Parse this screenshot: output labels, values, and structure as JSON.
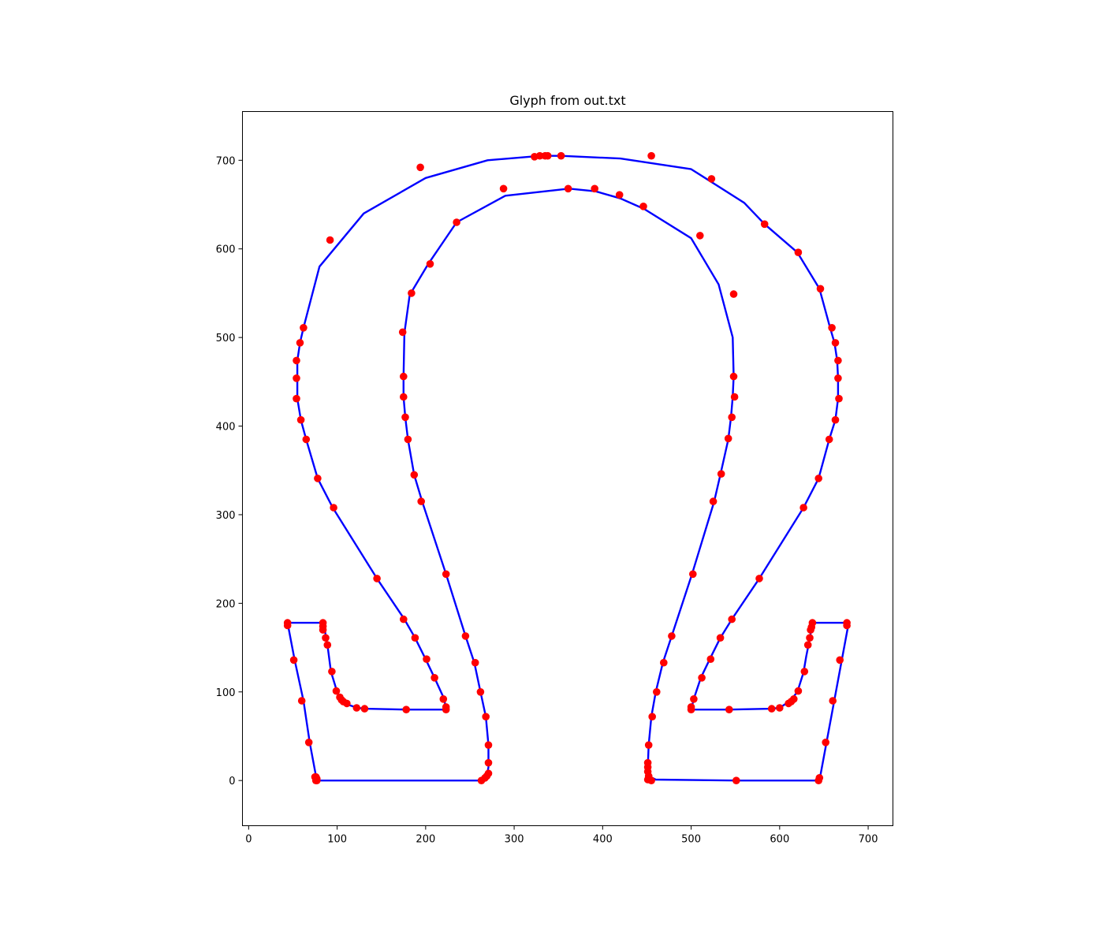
{
  "chart_data": {
    "type": "scatter",
    "title": "Glyph from out.txt",
    "xlabel": "",
    "ylabel": "",
    "xlim": [
      -7,
      728
    ],
    "ylim": [
      -51,
      755
    ],
    "xticks": [
      0,
      100,
      200,
      300,
      400,
      500,
      600,
      700
    ],
    "yticks": [
      0,
      100,
      200,
      300,
      400,
      500,
      600,
      700
    ],
    "grid": false,
    "colors": {
      "outline": "#0000ff",
      "points": "#ff0000",
      "axes": "#000000"
    },
    "series": [
      {
        "kind": "line",
        "values": [
          [
            [
              77,
              0
            ],
            [
              263,
              0
            ],
            [
              269,
              5
            ],
            [
              271,
              15
            ],
            [
              271,
              40
            ],
            [
              268,
              72
            ],
            [
              262,
              100
            ],
            [
              255,
              133
            ],
            [
              245,
              163
            ],
            [
              223,
              233
            ],
            [
              196,
              315
            ],
            [
              187,
              345
            ],
            [
              180,
              385
            ],
            [
              177,
              410
            ],
            [
              175,
              433
            ],
            [
              175,
              456
            ],
            [
              176,
              505
            ],
            [
              182,
              548
            ],
            [
              203,
              583
            ],
            [
              235,
              630
            ],
            [
              290,
              660
            ],
            [
              362,
              668
            ],
            [
              392,
              665
            ],
            [
              420,
              657
            ],
            [
              447,
              645
            ],
            [
              500,
              612
            ],
            [
              531,
              560
            ],
            [
              547,
              500
            ],
            [
              548,
              456
            ],
            [
              547,
              433
            ],
            [
              545,
              410
            ],
            [
              542,
              385
            ],
            [
              533,
              345
            ],
            [
              526,
              315
            ],
            [
              501,
              233
            ],
            [
              478,
              163
            ],
            [
              468,
              133
            ],
            [
              460,
              100
            ],
            [
              455,
              72
            ],
            [
              452,
              40
            ],
            [
              451,
              15
            ],
            [
              452,
              5
            ],
            [
              460,
              1
            ],
            [
              552,
              0
            ],
            [
              645,
              0
            ],
            [
              678,
              178
            ],
            [
              637,
              178
            ],
            [
              634,
              160
            ],
            [
              630,
              140
            ],
            [
              627,
              122
            ],
            [
              620,
              100
            ],
            [
              612,
              90
            ],
            [
              600,
              82
            ],
            [
              590,
              81
            ],
            [
              543,
              80
            ],
            [
              500,
              80
            ],
            [
              503,
              92
            ],
            [
              511,
              116
            ],
            [
              521,
              137
            ],
            [
              533,
              161
            ],
            [
              546,
              182
            ],
            [
              577,
              228
            ],
            [
              627,
              308
            ],
            [
              644,
              341
            ],
            [
              656,
              385
            ],
            [
              663,
              407
            ],
            [
              666,
              431
            ],
            [
              666,
              454
            ],
            [
              665,
              474
            ],
            [
              662,
              494
            ],
            [
              657,
              511
            ],
            [
              645,
              555
            ],
            [
              620,
              596
            ],
            [
              583,
              628
            ],
            [
              560,
              652
            ],
            [
              500,
              690
            ],
            [
              420,
              702
            ],
            [
              353,
              705
            ],
            [
              330,
              705
            ],
            [
              270,
              700
            ],
            [
              200,
              680
            ],
            [
              130,
              640
            ],
            [
              80,
              580
            ],
            [
              62,
              511
            ],
            [
              58,
              494
            ],
            [
              55,
              474
            ],
            [
              55,
              454
            ],
            [
              55,
              431
            ],
            [
              59,
              407
            ],
            [
              65,
              385
            ],
            [
              78,
              341
            ],
            [
              95,
              308
            ],
            [
              145,
              228
            ],
            [
              176,
              182
            ],
            [
              188,
              161
            ],
            [
              200,
              137
            ],
            [
              210,
              116
            ],
            [
              221,
              92
            ],
            [
              223,
              80
            ],
            [
              180,
              80
            ],
            [
              132,
              81
            ],
            [
              123,
              82
            ],
            [
              111,
              86
            ],
            [
              104,
              91
            ],
            [
              100,
              100
            ],
            [
              93,
              123
            ],
            [
              89,
              153
            ],
            [
              86,
              170
            ],
            [
              84,
              178
            ],
            [
              44,
              178
            ],
            [
              52,
              136
            ],
            [
              62,
              90
            ],
            [
              69,
              43
            ],
            [
              77,
              0
            ]
          ]
        ]
      },
      {
        "kind": "points",
        "values": [
          [
            77,
            0
          ],
          [
            76,
            4
          ],
          [
            77,
            2
          ],
          [
            263,
            0
          ],
          [
            267,
            3
          ],
          [
            269,
            5
          ],
          [
            271,
            8
          ],
          [
            271,
            20
          ],
          [
            271,
            40
          ],
          [
            268,
            72
          ],
          [
            262,
            100
          ],
          [
            256,
            133
          ],
          [
            245,
            163
          ],
          [
            223,
            233
          ],
          [
            195,
            315
          ],
          [
            187,
            345
          ],
          [
            180,
            385
          ],
          [
            177,
            410
          ],
          [
            175,
            433
          ],
          [
            175,
            456
          ],
          [
            174,
            506
          ],
          [
            184,
            550
          ],
          [
            205,
            583
          ],
          [
            235,
            630
          ],
          [
            288,
            668
          ],
          [
            361,
            668
          ],
          [
            391,
            668
          ],
          [
            419,
            661
          ],
          [
            446,
            648
          ],
          [
            510,
            615
          ],
          [
            548,
            549
          ],
          [
            548,
            456
          ],
          [
            549,
            433
          ],
          [
            546,
            410
          ],
          [
            542,
            386
          ],
          [
            534,
            346
          ],
          [
            525,
            315
          ],
          [
            502,
            233
          ],
          [
            478,
            163
          ],
          [
            469,
            133
          ],
          [
            461,
            100
          ],
          [
            456,
            72
          ],
          [
            452,
            40
          ],
          [
            451,
            20
          ],
          [
            451,
            15
          ],
          [
            451,
            10
          ],
          [
            452,
            5
          ],
          [
            451,
            1
          ],
          [
            455,
            0
          ],
          [
            551,
            0
          ],
          [
            644,
            0
          ],
          [
            645,
            3
          ],
          [
            652,
            43
          ],
          [
            660,
            90
          ],
          [
            668,
            136
          ],
          [
            676,
            175
          ],
          [
            676,
            178
          ],
          [
            637,
            178
          ],
          [
            636,
            173
          ],
          [
            635,
            170
          ],
          [
            634,
            161
          ],
          [
            632,
            153
          ],
          [
            628,
            123
          ],
          [
            621,
            101
          ],
          [
            616,
            92
          ],
          [
            613,
            89
          ],
          [
            610,
            87
          ],
          [
            600,
            82
          ],
          [
            591,
            81
          ],
          [
            543,
            80
          ],
          [
            500,
            80
          ],
          [
            500,
            83
          ],
          [
            503,
            92
          ],
          [
            512,
            116
          ],
          [
            522,
            137
          ],
          [
            533,
            161
          ],
          [
            546,
            182
          ],
          [
            577,
            228
          ],
          [
            627,
            308
          ],
          [
            644,
            341
          ],
          [
            656,
            385
          ],
          [
            663,
            407
          ],
          [
            667,
            431
          ],
          [
            666,
            454
          ],
          [
            666,
            474
          ],
          [
            663,
            494
          ],
          [
            659,
            511
          ],
          [
            646,
            555
          ],
          [
            621,
            596
          ],
          [
            583,
            628
          ],
          [
            523,
            679
          ],
          [
            455,
            705
          ],
          [
            353,
            705
          ],
          [
            338,
            705
          ],
          [
            335,
            705
          ],
          [
            329,
            705
          ],
          [
            323,
            704
          ],
          [
            194,
            692
          ],
          [
            92,
            610
          ],
          [
            62,
            511
          ],
          [
            58,
            494
          ],
          [
            54,
            474
          ],
          [
            54,
            454
          ],
          [
            54,
            431
          ],
          [
            59,
            407
          ],
          [
            65,
            385
          ],
          [
            78,
            341
          ],
          [
            96,
            308
          ],
          [
            145,
            228
          ],
          [
            175,
            182
          ],
          [
            188,
            161
          ],
          [
            201,
            137
          ],
          [
            210,
            116
          ],
          [
            220,
            92
          ],
          [
            223,
            83
          ],
          [
            223,
            80
          ],
          [
            178,
            80
          ],
          [
            131,
            81
          ],
          [
            122,
            82
          ],
          [
            111,
            87
          ],
          [
            107,
            89
          ],
          [
            105,
            91
          ],
          [
            103,
            94
          ],
          [
            99,
            101
          ],
          [
            94,
            123
          ],
          [
            89,
            153
          ],
          [
            87,
            161
          ],
          [
            84,
            170
          ],
          [
            84,
            174
          ],
          [
            84,
            178
          ],
          [
            44,
            178
          ],
          [
            44,
            175
          ],
          [
            51,
            136
          ],
          [
            60,
            90
          ],
          [
            68,
            43
          ],
          [
            75,
            4
          ],
          [
            76,
            0
          ]
        ]
      }
    ]
  }
}
